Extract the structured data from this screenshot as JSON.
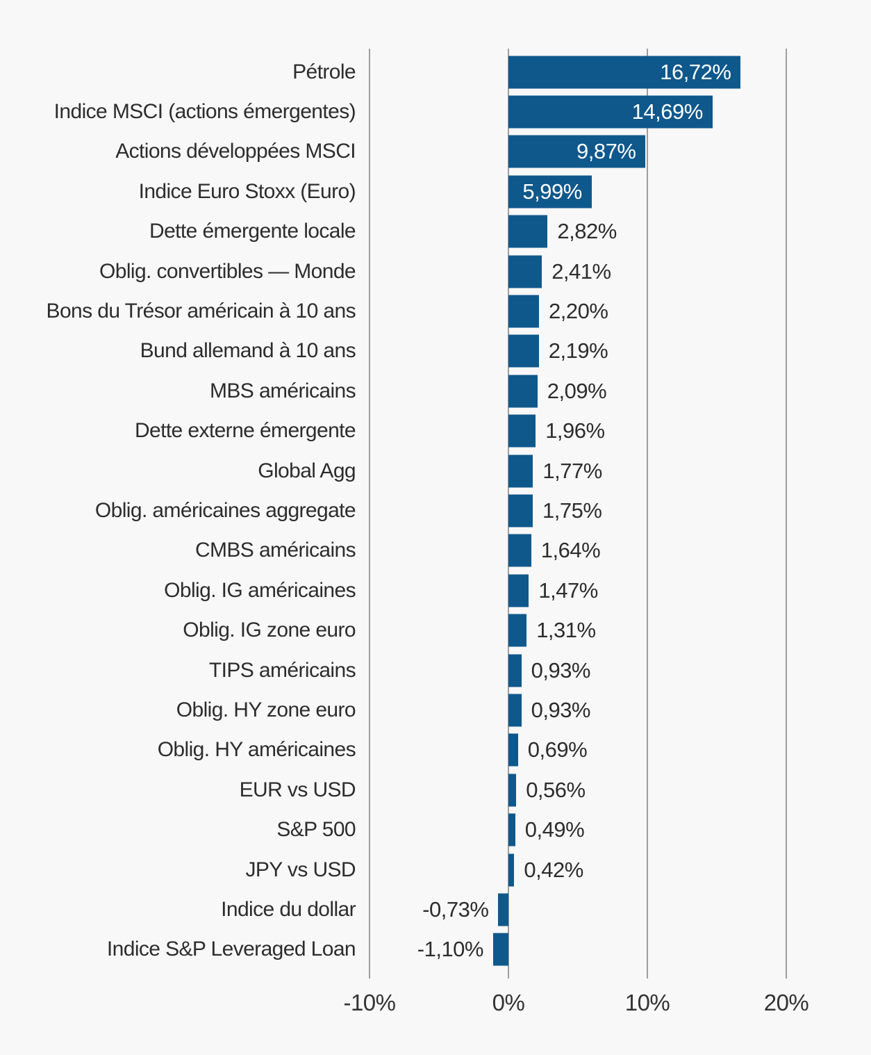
{
  "chart_data": {
    "type": "bar",
    "orientation": "horizontal",
    "title": "",
    "xlabel": "",
    "ylabel": "",
    "categories": [
      "Pétrole",
      "Indice MSCI (actions émergentes)",
      "Actions développées MSCI",
      "Indice Euro Stoxx (Euro)",
      "Dette émergente locale",
      "Oblig. convertibles — Monde",
      "Bons du Trésor américain à 10 ans",
      "Bund allemand à 10 ans",
      "MBS américains",
      "Dette externe émergente",
      "Global Agg",
      "Oblig. américaines aggregate",
      "CMBS américains",
      "Oblig. IG américaines",
      "Oblig. IG zone euro",
      "TIPS américains",
      "Oblig. HY zone euro",
      "Oblig. HY américaines",
      "EUR vs USD",
      "S&P 500",
      "JPY vs USD",
      "Indice du dollar",
      "Indice S&P Leveraged Loan"
    ],
    "values": [
      16.72,
      14.69,
      9.87,
      5.99,
      2.82,
      2.41,
      2.2,
      2.19,
      2.09,
      1.96,
      1.77,
      1.75,
      1.64,
      1.47,
      1.31,
      0.93,
      0.93,
      0.69,
      0.56,
      0.49,
      0.42,
      -0.73,
      -1.1
    ],
    "value_labels": [
      "16,72%",
      "14,69%",
      "9,87%",
      "5,99%",
      "2,82%",
      "2,41%",
      "2,20%",
      "2,19%",
      "2,09%",
      "1,96%",
      "1,77%",
      "1,75%",
      "1,64%",
      "1,47%",
      "1,31%",
      "0,93%",
      "0,93%",
      "0,69%",
      "0,56%",
      "0,49%",
      "0,42%",
      "-0,73%",
      "-1,10%"
    ],
    "xlim": [
      -10,
      20
    ],
    "x_ticks": [
      -10,
      0,
      10,
      20
    ],
    "x_tick_labels": [
      "-10%",
      "0%",
      "10%",
      "20%"
    ],
    "grid": "vertical",
    "legend": "none",
    "inside_value_count": 4,
    "colors": {
      "bar": "#0f588c",
      "background": "#f8f8f8",
      "grid_line": "#9e9e9e",
      "label_text": "#2d2d2d",
      "value_text_outside": "#2d2d2d",
      "value_text_inside": "#ffffff"
    }
  }
}
